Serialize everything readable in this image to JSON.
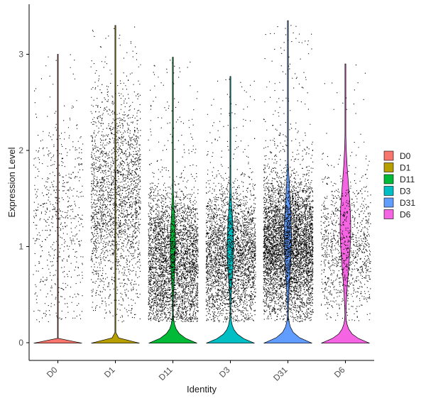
{
  "chart_data": {
    "type": "violin",
    "xlabel": "Identity",
    "ylabel": "Expression Level",
    "categories": [
      "D0",
      "D1",
      "D11",
      "D3",
      "D31",
      "D6"
    ],
    "ylim": [
      -0.18,
      3.35
    ],
    "yticks": [
      0,
      1,
      2,
      3
    ],
    "series": [
      {
        "name": "D0",
        "color": "#F8766D",
        "max": 3.0,
        "n_points": 620,
        "nonzero_center": 1.3,
        "mode": 0.0
      },
      {
        "name": "D1",
        "color": "#B79F00",
        "max": 3.3,
        "n_points": 2300,
        "nonzero_center": 1.5,
        "mode": 0.0
      },
      {
        "name": "D11",
        "color": "#00BA38",
        "max": 2.97,
        "n_points": 3600,
        "nonzero_center": 0.85,
        "mode": 0.0
      },
      {
        "name": "D3",
        "color": "#00BFC4",
        "max": 2.77,
        "n_points": 3100,
        "nonzero_center": 0.9,
        "mode": 0.0
      },
      {
        "name": "D31",
        "color": "#619CFF",
        "max": 3.35,
        "n_points": 5200,
        "nonzero_center": 1.0,
        "mode": 0.0
      },
      {
        "name": "D6",
        "color": "#F564E3",
        "max": 2.9,
        "n_points": 1100,
        "nonzero_center": 1.0,
        "mode": 0.0
      }
    ],
    "legend": {
      "position": "right",
      "entries": [
        "D0",
        "D1",
        "D11",
        "D3",
        "D31",
        "D6"
      ]
    },
    "grid": false
  }
}
